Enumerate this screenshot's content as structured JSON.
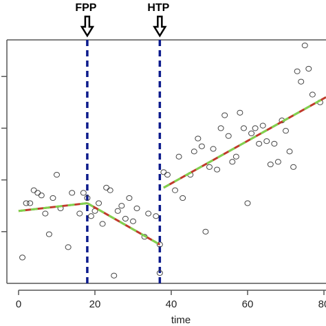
{
  "chart_data": {
    "type": "scatter",
    "title": "",
    "xlabel": "time",
    "ylabel": "",
    "xlim": [
      -2,
      81
    ],
    "ylim": [
      0,
      100
    ],
    "x_ticks": [
      0,
      20,
      40,
      60,
      80
    ],
    "x_tick_labels": [
      "0",
      "20",
      "40",
      "60",
      "80"
    ],
    "y_ticks": [
      20,
      40,
      60,
      80
    ],
    "grid": false,
    "colors": {
      "points": "#444444",
      "fit_red": "#c0392b",
      "fit_green": "#7fd34e",
      "marker_line": "#0b1a8c"
    },
    "vertical_markers": [
      {
        "label": "FPP",
        "x": 18
      },
      {
        "label": "HTP",
        "x": 37
      }
    ],
    "points": [
      [
        1,
        10
      ],
      [
        2,
        31
      ],
      [
        3,
        31
      ],
      [
        4,
        36
      ],
      [
        5,
        35
      ],
      [
        6,
        34
      ],
      [
        7,
        27
      ],
      [
        8,
        19
      ],
      [
        9,
        33
      ],
      [
        10,
        42
      ],
      [
        11,
        29
      ],
      [
        13,
        14
      ],
      [
        14,
        35
      ],
      [
        16,
        27
      ],
      [
        17,
        35
      ],
      [
        18,
        33
      ],
      [
        19,
        26
      ],
      [
        20,
        28
      ],
      [
        21,
        31
      ],
      [
        22,
        23
      ],
      [
        23,
        37
      ],
      [
        24,
        36
      ],
      [
        25,
        3
      ],
      [
        26,
        28
      ],
      [
        27,
        30
      ],
      [
        28,
        25
      ],
      [
        29,
        33
      ],
      [
        30,
        24
      ],
      [
        31,
        29
      ],
      [
        33,
        18
      ],
      [
        34,
        27
      ],
      [
        36,
        26
      ],
      [
        37,
        4
      ],
      [
        37,
        15
      ],
      [
        38,
        43
      ],
      [
        39,
        42
      ],
      [
        41,
        36
      ],
      [
        42,
        49
      ],
      [
        43,
        33
      ],
      [
        45,
        42
      ],
      [
        46,
        51
      ],
      [
        47,
        56
      ],
      [
        48,
        53
      ],
      [
        49,
        20
      ],
      [
        50,
        45
      ],
      [
        51,
        52
      ],
      [
        52,
        44
      ],
      [
        53,
        60
      ],
      [
        54,
        65
      ],
      [
        55,
        57
      ],
      [
        56,
        47
      ],
      [
        57,
        49
      ],
      [
        58,
        66
      ],
      [
        59,
        60
      ],
      [
        60,
        31
      ],
      [
        61,
        58
      ],
      [
        62,
        60
      ],
      [
        63,
        54
      ],
      [
        64,
        61
      ],
      [
        65,
        55
      ],
      [
        66,
        46
      ],
      [
        67,
        54
      ],
      [
        68,
        47
      ],
      [
        69,
        63
      ],
      [
        70,
        59
      ],
      [
        71,
        51
      ],
      [
        72,
        45
      ],
      [
        73,
        82
      ],
      [
        74,
        78
      ],
      [
        75,
        92
      ],
      [
        76,
        83
      ],
      [
        77,
        73
      ],
      [
        79,
        70
      ]
    ],
    "series": [
      {
        "segments": [
          [
            [
              0,
              28
            ],
            [
              18,
              31
            ]
          ],
          [
            [
              18,
              31
            ],
            [
              37,
              15
            ]
          ],
          [
            [
              38,
              37
            ],
            [
              81,
              72
            ]
          ]
        ]
      }
    ]
  }
}
